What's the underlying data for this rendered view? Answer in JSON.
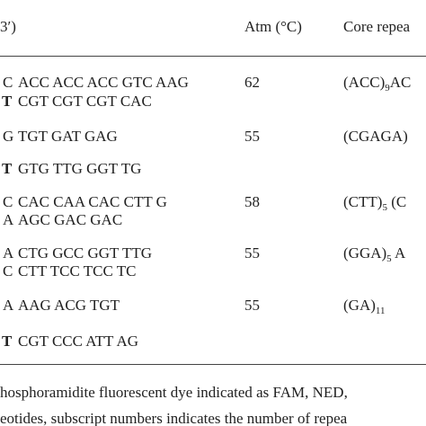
{
  "header": {
    "primer": "3′)",
    "atm": "Atm (°C)",
    "core": "Core repea"
  },
  "rows": [
    {
      "lines": [
        {
          "lead": "C",
          "bold": false,
          "seq": "ACC ACC ACC GTC AAG"
        },
        {
          "lead": "T",
          "bold": true,
          "seq": "CGT CGT CGT CAC"
        }
      ],
      "atm": "62",
      "core": [
        {
          "t": "(ACC)",
          "sub": false
        },
        {
          "t": "9",
          "sub": true
        },
        {
          "t": "AC",
          "sub": false
        }
      ]
    },
    {
      "lines": [
        {
          "lead": "G",
          "bold": false,
          "seq": "TGT GAT GAG"
        },
        {
          "lead": "T",
          "bold": true,
          "seq": "GTG TTG GGT TG"
        }
      ],
      "atm": "55",
      "core": [
        {
          "t": "(CGAGA)",
          "sub": false
        }
      ]
    },
    {
      "lines": [
        {
          "lead": "C",
          "bold": false,
          "seq": "CAC CAA CAC CTT G"
        },
        {
          "lead": "A",
          "bold": false,
          "seq": "AGC GAC GAC"
        }
      ],
      "atm": "58",
      "core": [
        {
          "t": "(CTT)",
          "sub": false
        },
        {
          "t": "5",
          "sub": true
        },
        {
          "t": " (C",
          "sub": false
        }
      ]
    },
    {
      "lines": [
        {
          "lead": "A",
          "bold": false,
          "seq": "CTG GCC GGT TTG"
        },
        {
          "lead": "C",
          "bold": false,
          "seq": "CTT TCC TCC TC"
        }
      ],
      "atm": "55",
      "core": [
        {
          "t": "(GGA)",
          "sub": false
        },
        {
          "t": "5",
          "sub": true
        },
        {
          "t": " A",
          "sub": false
        }
      ]
    },
    {
      "lines": [
        {
          "lead": "A",
          "bold": false,
          "seq": "AAG ACG TGT"
        },
        {
          "lead": "T",
          "bold": true,
          "seq": "CGT CCC ATT AG"
        }
      ],
      "atm": "55",
      "core": [
        {
          "t": "(GA)",
          "sub": false
        },
        {
          "t": "11",
          "sub": true
        }
      ]
    }
  ],
  "footnote": [
    "hosphoramidite fluorescent dye indicated as FAM, NED,",
    "eotides, subscript numbers indicates the number of repea"
  ]
}
